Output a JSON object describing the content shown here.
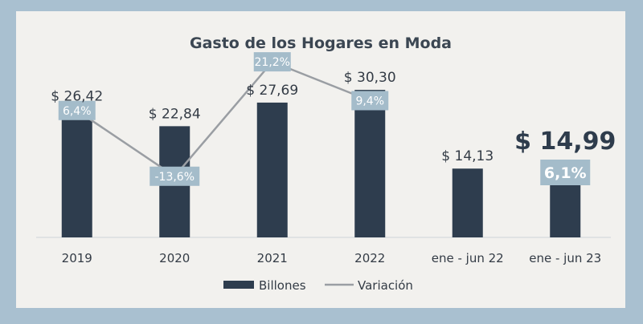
{
  "chart_data": {
    "type": "bar",
    "title": "Gasto de los Hogares en Moda",
    "categories": [
      "2019",
      "2020",
      "2021",
      "2022",
      "ene - jun 22",
      "ene - jun 23"
    ],
    "series": [
      {
        "name": "Billones",
        "values": [
          26.42,
          22.84,
          27.69,
          30.3,
          14.13,
          14.99
        ],
        "labels": [
          "$ 26,42",
          "$ 22,84",
          "$ 27,69",
          "$ 30,30",
          "$ 14,13",
          "$ 14,99"
        ]
      },
      {
        "name": "Variación",
        "type": "line",
        "values": [
          6.4,
          -13.6,
          21.2,
          9.4,
          null,
          6.1
        ],
        "labels": [
          "6,4%",
          "-13,6%",
          "21,2%",
          "9,4%",
          "",
          "6,1%"
        ]
      }
    ],
    "legend": [
      "Billones",
      "Variación"
    ],
    "legend_position": "bottom",
    "colors": {
      "bar": "#2e3d4e",
      "line": "#9a9ea3",
      "label_box": "#a4bcca",
      "background": "#f2f1ee",
      "page": "#a9c0d0"
    }
  }
}
